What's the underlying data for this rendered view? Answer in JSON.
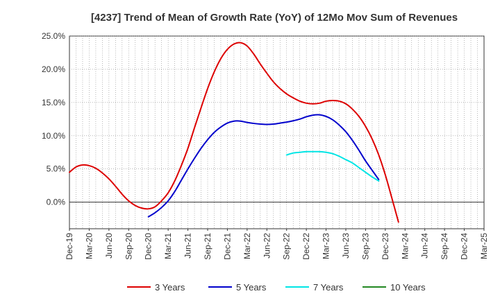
{
  "chart_data": {
    "type": "line",
    "title": "[4237]  Trend of Mean of Growth Rate (YoY) of 12Mo Mov Sum of Revenues",
    "xlabel": "",
    "ylabel": "",
    "x_ticks": [
      "Dec-19",
      "Mar-20",
      "Jun-20",
      "Sep-20",
      "Dec-20",
      "Mar-21",
      "Jun-21",
      "Sep-21",
      "Dec-21",
      "Mar-22",
      "Jun-22",
      "Sep-22",
      "Dec-22",
      "Mar-23",
      "Jun-23",
      "Sep-23",
      "Dec-23",
      "Mar-24",
      "Jun-24",
      "Sep-24",
      "Dec-24",
      "Mar-25"
    ],
    "y_ticks": [
      "25.0%",
      "20.0%",
      "15.0%",
      "10.0%",
      "5.0%",
      "0.0%"
    ],
    "y_tick_values": [
      25,
      20,
      15,
      10,
      5,
      0
    ],
    "ylim": [
      -4,
      25
    ],
    "x_domain": [
      0,
      63
    ],
    "grid": true,
    "legend_position": "bottom",
    "series": [
      {
        "name": "3 Years",
        "color": "#dd0000",
        "points": [
          [
            0,
            4.5
          ],
          [
            1,
            5.3
          ],
          [
            2,
            5.6
          ],
          [
            3,
            5.5
          ],
          [
            4,
            5.1
          ],
          [
            5,
            4.4
          ],
          [
            6,
            3.5
          ],
          [
            7,
            2.4
          ],
          [
            8,
            1.2
          ],
          [
            9,
            0.2
          ],
          [
            10,
            -0.5
          ],
          [
            11,
            -0.9
          ],
          [
            12,
            -1.0
          ],
          [
            13,
            -0.7
          ],
          [
            14,
            0.2
          ],
          [
            15,
            1.4
          ],
          [
            16,
            3.2
          ],
          [
            17,
            5.5
          ],
          [
            18,
            8.1
          ],
          [
            19,
            11.2
          ],
          [
            20,
            14.2
          ],
          [
            21,
            17.1
          ],
          [
            22,
            19.6
          ],
          [
            23,
            21.6
          ],
          [
            24,
            23.0
          ],
          [
            25,
            23.8
          ],
          [
            26,
            24.0
          ],
          [
            27,
            23.5
          ],
          [
            28,
            22.3
          ],
          [
            29,
            20.8
          ],
          [
            30,
            19.4
          ],
          [
            31,
            18.1
          ],
          [
            32,
            17.1
          ],
          [
            33,
            16.3
          ],
          [
            34,
            15.7
          ],
          [
            35,
            15.2
          ],
          [
            36,
            14.9
          ],
          [
            37,
            14.8
          ],
          [
            38,
            14.9
          ],
          [
            39,
            15.2
          ],
          [
            40,
            15.3
          ],
          [
            41,
            15.2
          ],
          [
            42,
            14.8
          ],
          [
            43,
            14.0
          ],
          [
            44,
            12.9
          ],
          [
            45,
            11.4
          ],
          [
            46,
            9.5
          ],
          [
            47,
            7.1
          ],
          [
            48,
            4.1
          ],
          [
            49,
            0.6
          ],
          [
            50,
            -3.0
          ]
        ]
      },
      {
        "name": "5 Years",
        "color": "#0000cc",
        "points": [
          [
            12,
            -2.2
          ],
          [
            13,
            -1.6
          ],
          [
            14,
            -0.8
          ],
          [
            15,
            0.2
          ],
          [
            16,
            1.6
          ],
          [
            17,
            3.3
          ],
          [
            18,
            5.0
          ],
          [
            19,
            6.6
          ],
          [
            20,
            8.1
          ],
          [
            21,
            9.4
          ],
          [
            22,
            10.5
          ],
          [
            23,
            11.3
          ],
          [
            24,
            11.9
          ],
          [
            25,
            12.2
          ],
          [
            26,
            12.2
          ],
          [
            27,
            12.0
          ],
          [
            28,
            11.85
          ],
          [
            29,
            11.75
          ],
          [
            30,
            11.7
          ],
          [
            31,
            11.75
          ],
          [
            32,
            11.9
          ],
          [
            33,
            12.05
          ],
          [
            34,
            12.25
          ],
          [
            35,
            12.5
          ],
          [
            36,
            12.85
          ],
          [
            37,
            13.1
          ],
          [
            38,
            13.15
          ],
          [
            39,
            12.9
          ],
          [
            40,
            12.4
          ],
          [
            41,
            11.6
          ],
          [
            42,
            10.6
          ],
          [
            43,
            9.3
          ],
          [
            44,
            7.8
          ],
          [
            45,
            6.2
          ],
          [
            46,
            4.8
          ],
          [
            47,
            3.4
          ]
        ]
      },
      {
        "name": "7 Years",
        "color": "#00e5e5",
        "points": [
          [
            33,
            7.1
          ],
          [
            34,
            7.4
          ],
          [
            35,
            7.5
          ],
          [
            36,
            7.6
          ],
          [
            37,
            7.6
          ],
          [
            38,
            7.6
          ],
          [
            39,
            7.5
          ],
          [
            40,
            7.3
          ],
          [
            41,
            6.9
          ],
          [
            42,
            6.4
          ],
          [
            43,
            5.9
          ],
          [
            44,
            5.2
          ],
          [
            45,
            4.5
          ],
          [
            46,
            3.8
          ],
          [
            47,
            3.2
          ]
        ]
      },
      {
        "name": "10 Years",
        "color": "#228822",
        "points": []
      }
    ]
  }
}
